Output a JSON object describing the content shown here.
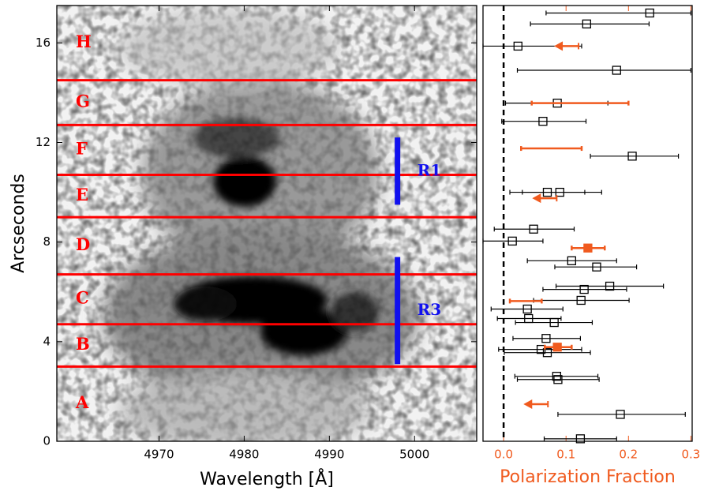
{
  "chart_data": [
    {
      "type": "image",
      "xlabel": "Wavelength [Å]",
      "ylabel": "Arcseconds",
      "xlim": [
        4958,
        5007.3
      ],
      "ylim": [
        0,
        17.5
      ],
      "xticks": [
        4970,
        4980,
        4990,
        5000
      ],
      "yticks": [
        0,
        4,
        8,
        12,
        16
      ],
      "hlines": [
        3.0,
        4.7,
        6.7,
        9.0,
        10.7,
        12.7,
        14.5
      ],
      "hline_color": "#ff0000",
      "regions": [
        "A",
        "B",
        "C",
        "D",
        "E",
        "F",
        "G",
        "H"
      ],
      "region_color": "#ff0000",
      "bars": [
        {
          "label": "R1",
          "x": 4998,
          "y": [
            9.5,
            12.2
          ]
        },
        {
          "label": "R3",
          "x": 4998,
          "y": [
            3.1,
            7.4
          ]
        }
      ],
      "bar_color": "#1010ee"
    },
    {
      "type": "errorbar",
      "xlabel": "Polarization Fraction",
      "axis_color": "#f05a1e",
      "xlim": [
        -0.033,
        0.302
      ],
      "ylim": [
        0,
        17.5
      ],
      "xticks": [
        {
          "value": 0,
          "label": "0.0"
        },
        0.1,
        0.2,
        0.3
      ],
      "vline": 0,
      "series": [
        {
          "color": "#000000",
          "marker": "open-square",
          "y": [
            17.2,
            16.76,
            15.87,
            14.9,
            13.58,
            12.85,
            11.45,
            10.0,
            10.0,
            8.52,
            8.04,
            7.25,
            7.0,
            6.23,
            6.1,
            5.66,
            5.31,
            4.93,
            4.77,
            4.13,
            3.69,
            3.56,
            2.61,
            2.48,
            1.08,
            0.1
          ],
          "values": [
            0.234,
            0.133,
            0.023,
            0.181,
            0.086,
            0.063,
            0.206,
            0.07,
            0.09,
            0.048,
            0.014,
            0.109,
            0.149,
            0.17,
            0.129,
            0.124,
            0.038,
            0.04,
            0.081,
            0.068,
            0.06,
            0.07,
            0.085,
            0.087,
            0.187,
            0.123
          ],
          "lower": [
            0.068,
            0.043,
            -0.033,
            0.022,
            0.003,
            -0.003,
            0.139,
            0.01,
            0.03,
            -0.015,
            -0.033,
            0.038,
            0.082,
            0.084,
            0.063,
            0.048,
            -0.02,
            -0.01,
            0.019,
            0.015,
            -0.008,
            0.001,
            0.018,
            0.022,
            0.087,
            0.065
          ],
          "upper": [
            0.3,
            0.233,
            0.125,
            0.3,
            0.167,
            0.132,
            0.28,
            0.13,
            0.157,
            0.113,
            0.063,
            0.181,
            0.213,
            0.256,
            0.197,
            0.201,
            0.095,
            0.092,
            0.142,
            0.123,
            0.125,
            0.139,
            0.151,
            0.153,
            0.291,
            0.181
          ]
        },
        {
          "color": "#f05a1e",
          "marker": "filled-square",
          "y": [
            7.76,
            3.78
          ],
          "values": [
            0.135,
            0.086
          ],
          "lower": [
            0.109,
            0.066
          ],
          "upper": [
            0.162,
            0.109
          ]
        },
        {
          "color": "#f05a1e",
          "marker": "none",
          "y": [
            13.58,
            11.76,
            5.63
          ],
          "lower": [
            0.045,
            0.028,
            0.01
          ],
          "upper": [
            0.2,
            0.125,
            0.061
          ]
        },
        {
          "color": "#f05a1e",
          "marker": "upper-limit",
          "y": [
            15.87,
            9.76,
            1.49
          ],
          "values": [
            0.12,
            0.085,
            0.071
          ]
        }
      ]
    }
  ]
}
